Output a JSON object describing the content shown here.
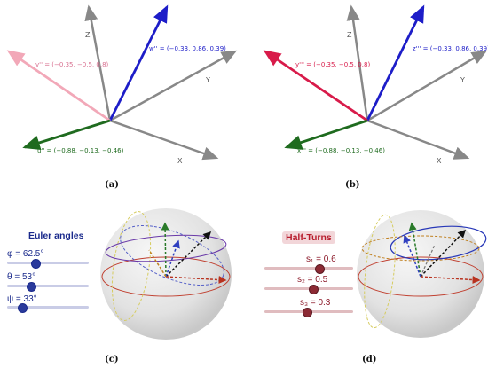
{
  "panels": {
    "a": {
      "caption": "(a)",
      "axis_labels": {
        "z": "Z",
        "y": "Y",
        "x": "X"
      },
      "vectors": {
        "w": "w'' = (−0.33, 0.86, 0.39)",
        "v": "v'' = (−0.35, −0.5, 0.8)",
        "u": "u'' = (−0.88, −0.13, −0.46)"
      },
      "colors": {
        "w": "#1d1dc8",
        "v": "#f2a8b8",
        "u": "#1f6b1f",
        "axis": "#888888"
      }
    },
    "b": {
      "caption": "(b)",
      "axis_labels": {
        "z": "Z",
        "y": "Y",
        "x": "X"
      },
      "vectors": {
        "z": "z''' = (−0.33, 0.86, 0.39)",
        "y": "y''' = (−0.35, −0.5, 0.8)",
        "x": "x''' = (−0.88, −0.13, −0.46)"
      },
      "colors": {
        "z": "#1d1dc8",
        "y": "#d81b4a",
        "x": "#1f6b1f",
        "axis": "#888888"
      }
    },
    "c": {
      "caption": "(c)",
      "title": "Euler angles",
      "sliders": [
        {
          "label": "φ = 62.5°",
          "fraction": 0.35
        },
        {
          "label": "θ = 53°",
          "fraction": 0.29
        },
        {
          "label": "ψ = 33°",
          "fraction": 0.18
        }
      ],
      "colors": {
        "accent": "#1a2a8c",
        "track": "#c9cce6"
      }
    },
    "d": {
      "caption": "(d)",
      "title": "Half-Turns",
      "sliders": [
        {
          "label": "s₁ = 0.6",
          "fraction": 0.62
        },
        {
          "label": "s₂ = 0.5",
          "fraction": 0.55
        },
        {
          "label": "s₃ = 0.3",
          "fraction": 0.48
        }
      ],
      "colors": {
        "accent": "#8c1a2a",
        "track": "#e0bcbf"
      }
    }
  }
}
